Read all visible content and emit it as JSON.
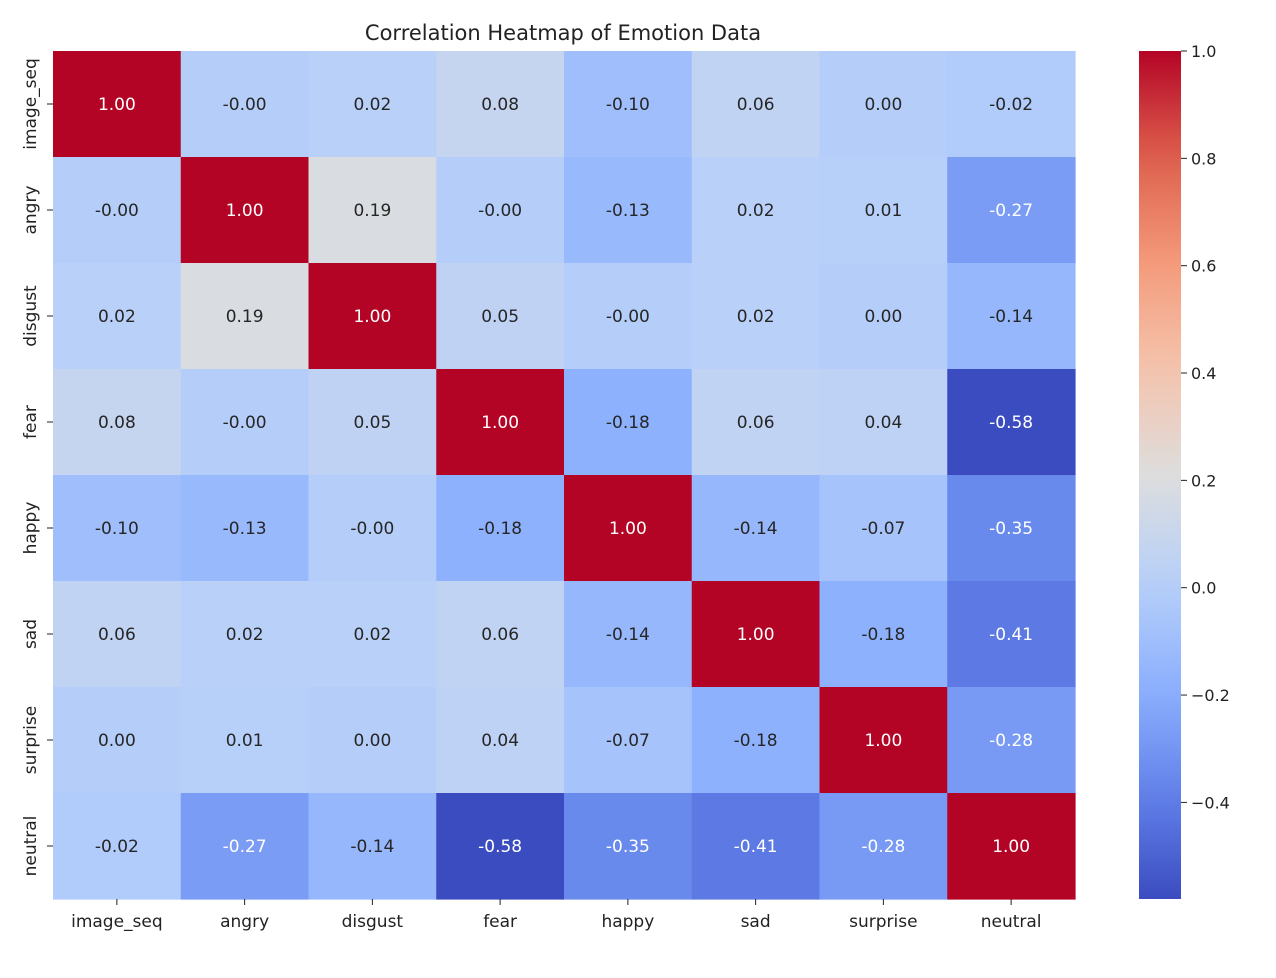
{
  "chart_data": {
    "type": "heatmap",
    "title": "Correlation Heatmap of Emotion Data",
    "xlabel": "",
    "ylabel": "",
    "x_categories": [
      "image_seq",
      "angry",
      "disgust",
      "fear",
      "happy",
      "sad",
      "surprise",
      "neutral"
    ],
    "y_categories": [
      "image_seq",
      "angry",
      "disgust",
      "fear",
      "happy",
      "sad",
      "surprise",
      "neutral"
    ],
    "values": [
      [
        1.0,
        -0.0,
        0.02,
        0.08,
        -0.1,
        0.06,
        0.0,
        -0.02
      ],
      [
        -0.0,
        1.0,
        0.19,
        -0.0,
        -0.13,
        0.02,
        0.01,
        -0.27
      ],
      [
        0.02,
        0.19,
        1.0,
        0.05,
        -0.0,
        0.02,
        0.0,
        -0.14
      ],
      [
        0.08,
        -0.0,
        0.05,
        1.0,
        -0.18,
        0.06,
        0.04,
        -0.58
      ],
      [
        -0.1,
        -0.13,
        -0.0,
        -0.18,
        1.0,
        -0.14,
        -0.07,
        -0.35
      ],
      [
        0.06,
        0.02,
        0.02,
        0.06,
        -0.14,
        1.0,
        -0.18,
        -0.41
      ],
      [
        0.0,
        0.01,
        0.0,
        0.04,
        -0.07,
        -0.18,
        1.0,
        -0.28
      ],
      [
        -0.02,
        -0.27,
        -0.14,
        -0.58,
        -0.35,
        -0.41,
        -0.28,
        1.0
      ]
    ],
    "value_format": "2 decimals",
    "colormap": "coolwarm",
    "vmin": -0.58,
    "vmax": 1.0,
    "colorbar": {
      "ticks": [
        1.0,
        0.8,
        0.6,
        0.4,
        0.2,
        0.0,
        -0.2,
        -0.4
      ],
      "tick_labels": [
        "1.0",
        "0.8",
        "0.6",
        "0.4",
        "0.2",
        "0.0",
        "−0.2",
        "−0.4"
      ],
      "placement": "right"
    },
    "grid": false,
    "legend": "none"
  }
}
